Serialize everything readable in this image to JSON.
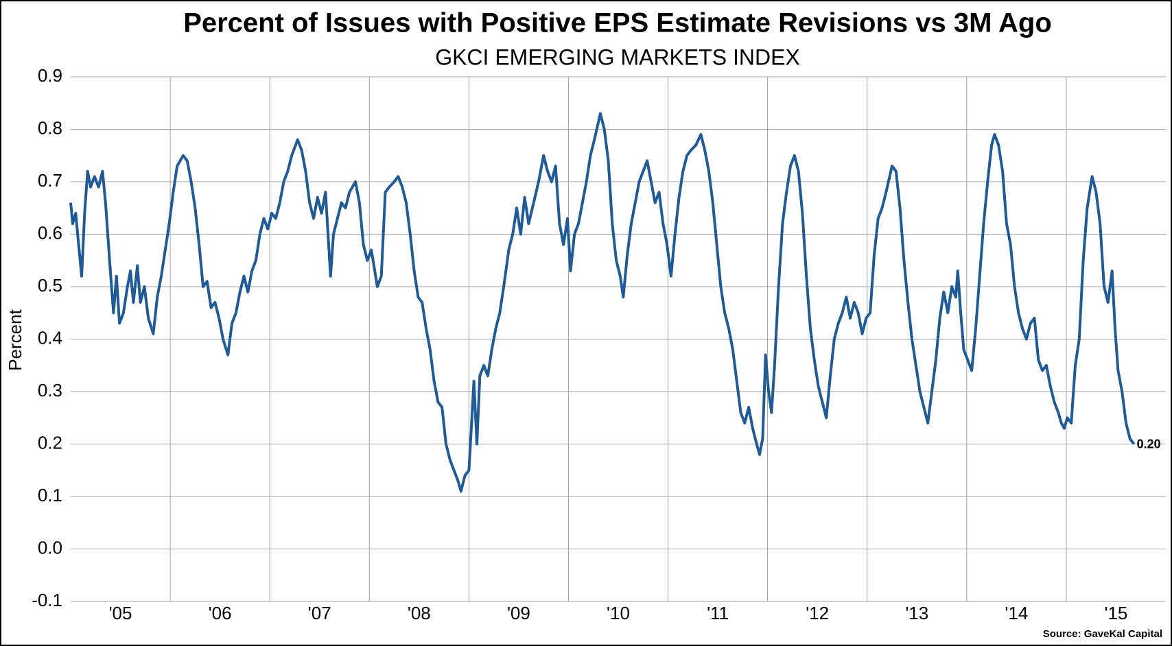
{
  "chart_data": {
    "type": "line",
    "title": "Percent of Issues with Positive EPS Estimate Revisions vs 3M Ago",
    "subtitle": "GKCI EMERGING MARKETS INDEX",
    "y_label": "Percent",
    "source": "Source: GaveKal Capital",
    "end_label": "0.20",
    "color": "#1f5b99",
    "grid": true,
    "xlim": [
      2005,
      2016
    ],
    "xticks": [
      {
        "value": 2005,
        "label": "'05"
      },
      {
        "value": 2006,
        "label": "'06"
      },
      {
        "value": 2007,
        "label": "'07"
      },
      {
        "value": 2008,
        "label": "'08"
      },
      {
        "value": 2009,
        "label": "'09"
      },
      {
        "value": 2010,
        "label": "'10"
      },
      {
        "value": 2011,
        "label": "'11"
      },
      {
        "value": 2012,
        "label": "'12"
      },
      {
        "value": 2013,
        "label": "'13"
      },
      {
        "value": 2014,
        "label": "'14"
      },
      {
        "value": 2015,
        "label": "'15"
      }
    ],
    "ylim": [
      -0.1,
      0.9
    ],
    "yticks": [
      -0.1,
      {
        "value": 0,
        "label": "0.0"
      },
      0.1,
      0.2,
      0.3,
      0.4,
      0.5,
      0.6,
      0.7,
      0.8,
      0.9
    ],
    "x": [
      2005,
      2005.02,
      2005.05,
      2005.08,
      2005.11,
      2005.14,
      2005.17,
      2005.2,
      2005.24,
      2005.28,
      2005.32,
      2005.35,
      2005.38,
      2005.41,
      2005.43,
      2005.46,
      2005.49,
      2005.53,
      2005.57,
      2005.6,
      2005.63,
      2005.67,
      2005.7,
      2005.74,
      2005.78,
      2005.83,
      2005.87,
      2005.91,
      2005.95,
      2005.99,
      2006.03,
      2006.07,
      2006.1,
      2006.13,
      2006.17,
      2006.21,
      2006.25,
      2006.29,
      2006.33,
      2006.37,
      2006.41,
      2006.45,
      2006.49,
      2006.53,
      2006.58,
      2006.62,
      2006.66,
      2006.7,
      2006.74,
      2006.78,
      2006.82,
      2006.86,
      2006.9,
      2006.94,
      2006.98,
      2007.02,
      2007.06,
      2007.1,
      2007.14,
      2007.18,
      2007.22,
      2007.28,
      2007.32,
      2007.36,
      2007.4,
      2007.44,
      2007.48,
      2007.52,
      2007.56,
      2007.61,
      2007.64,
      2007.68,
      2007.72,
      2007.76,
      2007.8,
      2007.86,
      2007.9,
      2007.94,
      2007.98,
      2008.02,
      2008.08,
      2008.12,
      2008.16,
      2008.2,
      2008.25,
      2008.29,
      2008.33,
      2008.37,
      2008.41,
      2008.45,
      2008.49,
      2008.53,
      2008.57,
      2008.61,
      2008.65,
      2008.69,
      2008.73,
      2008.77,
      2008.81,
      2008.85,
      2008.89,
      2008.92,
      2008.96,
      2009,
      2009.03,
      2009.05,
      2009.08,
      2009.11,
      2009.15,
      2009.19,
      2009.23,
      2009.27,
      2009.31,
      2009.35,
      2009.4,
      2009.44,
      2009.48,
      2009.52,
      2009.56,
      2009.6,
      2009.65,
      2009.7,
      2009.75,
      2009.79,
      2009.83,
      2009.87,
      2009.91,
      2009.95,
      2009.99,
      2010.02,
      2010.06,
      2010.1,
      2010.14,
      2010.18,
      2010.22,
      2010.26,
      2010.32,
      2010.36,
      2010.4,
      2010.44,
      2010.48,
      2010.52,
      2010.55,
      2010.59,
      2010.63,
      2010.67,
      2010.71,
      2010.75,
      2010.79,
      2010.83,
      2010.87,
      2010.91,
      2010.95,
      2010.99,
      2011.03,
      2011.07,
      2011.11,
      2011.15,
      2011.19,
      2011.23,
      2011.28,
      2011.33,
      2011.37,
      2011.41,
      2011.45,
      2011.49,
      2011.53,
      2011.57,
      2011.61,
      2011.65,
      2011.69,
      2011.73,
      2011.77,
      2011.81,
      2011.85,
      2011.89,
      2011.92,
      2011.95,
      2011.98,
      2012.01,
      2012.04,
      2012.07,
      2012.11,
      2012.15,
      2012.19,
      2012.23,
      2012.27,
      2012.31,
      2012.35,
      2012.39,
      2012.43,
      2012.47,
      2012.51,
      2012.55,
      2012.59,
      2012.63,
      2012.67,
      2012.71,
      2012.75,
      2012.79,
      2012.83,
      2012.87,
      2012.91,
      2012.95,
      2012.99,
      2013.03,
      2013.07,
      2013.11,
      2013.15,
      2013.19,
      2013.25,
      2013.29,
      2013.33,
      2013.37,
      2013.41,
      2013.45,
      2013.49,
      2013.53,
      2013.57,
      2013.61,
      2013.65,
      2013.69,
      2013.73,
      2013.77,
      2013.81,
      2013.85,
      2013.89,
      2013.91,
      2013.94,
      2013.97,
      2014.01,
      2014.05,
      2014.09,
      2014.13,
      2014.17,
      2014.21,
      2014.25,
      2014.28,
      2014.32,
      2014.36,
      2014.4,
      2014.44,
      2014.48,
      2014.52,
      2014.56,
      2014.6,
      2014.64,
      2014.68,
      2014.72,
      2014.76,
      2014.8,
      2014.84,
      2014.88,
      2014.92,
      2014.95,
      2014.98,
      2015.01,
      2015.05,
      2015.09,
      2015.13,
      2015.17,
      2015.21,
      2015.26,
      2015.3,
      2015.34,
      2015.38,
      2015.42,
      2015.46,
      2015.49,
      2015.52,
      2015.56,
      2015.6,
      2015.64,
      2015.68
    ],
    "values": [
      0.66,
      0.62,
      0.64,
      0.58,
      0.52,
      0.64,
      0.72,
      0.69,
      0.71,
      0.69,
      0.72,
      0.66,
      0.58,
      0.5,
      0.45,
      0.52,
      0.43,
      0.45,
      0.5,
      0.53,
      0.47,
      0.54,
      0.47,
      0.5,
      0.44,
      0.41,
      0.48,
      0.52,
      0.57,
      0.62,
      0.68,
      0.73,
      0.74,
      0.75,
      0.74,
      0.7,
      0.65,
      0.58,
      0.5,
      0.51,
      0.46,
      0.47,
      0.44,
      0.4,
      0.37,
      0.43,
      0.45,
      0.49,
      0.52,
      0.49,
      0.53,
      0.55,
      0.6,
      0.63,
      0.61,
      0.64,
      0.63,
      0.66,
      0.7,
      0.72,
      0.75,
      0.78,
      0.76,
      0.72,
      0.66,
      0.63,
      0.67,
      0.64,
      0.68,
      0.52,
      0.6,
      0.63,
      0.66,
      0.65,
      0.68,
      0.7,
      0.66,
      0.58,
      0.55,
      0.57,
      0.5,
      0.52,
      0.68,
      0.69,
      0.7,
      0.71,
      0.69,
      0.66,
      0.6,
      0.53,
      0.48,
      0.47,
      0.42,
      0.38,
      0.32,
      0.28,
      0.27,
      0.2,
      0.17,
      0.15,
      0.13,
      0.11,
      0.14,
      0.15,
      0.25,
      0.32,
      0.2,
      0.33,
      0.35,
      0.33,
      0.38,
      0.42,
      0.45,
      0.5,
      0.57,
      0.6,
      0.65,
      0.6,
      0.67,
      0.62,
      0.66,
      0.7,
      0.75,
      0.72,
      0.7,
      0.73,
      0.62,
      0.58,
      0.63,
      0.53,
      0.6,
      0.62,
      0.66,
      0.7,
      0.75,
      0.78,
      0.83,
      0.8,
      0.74,
      0.62,
      0.55,
      0.52,
      0.48,
      0.56,
      0.62,
      0.66,
      0.7,
      0.72,
      0.74,
      0.7,
      0.66,
      0.68,
      0.62,
      0.58,
      0.52,
      0.6,
      0.67,
      0.72,
      0.75,
      0.76,
      0.77,
      0.79,
      0.76,
      0.72,
      0.66,
      0.58,
      0.5,
      0.45,
      0.42,
      0.38,
      0.32,
      0.26,
      0.24,
      0.27,
      0.23,
      0.2,
      0.18,
      0.21,
      0.37,
      0.3,
      0.26,
      0.35,
      0.5,
      0.62,
      0.68,
      0.73,
      0.75,
      0.72,
      0.64,
      0.52,
      0.42,
      0.36,
      0.31,
      0.28,
      0.25,
      0.33,
      0.4,
      0.43,
      0.45,
      0.48,
      0.44,
      0.47,
      0.45,
      0.41,
      0.44,
      0.45,
      0.56,
      0.63,
      0.65,
      0.68,
      0.73,
      0.72,
      0.65,
      0.55,
      0.47,
      0.4,
      0.35,
      0.3,
      0.27,
      0.24,
      0.3,
      0.36,
      0.44,
      0.49,
      0.45,
      0.5,
      0.48,
      0.53,
      0.45,
      0.38,
      0.36,
      0.34,
      0.42,
      0.52,
      0.62,
      0.7,
      0.77,
      0.79,
      0.77,
      0.72,
      0.62,
      0.58,
      0.5,
      0.45,
      0.42,
      0.4,
      0.43,
      0.44,
      0.36,
      0.34,
      0.35,
      0.31,
      0.28,
      0.26,
      0.24,
      0.23,
      0.25,
      0.24,
      0.35,
      0.4,
      0.55,
      0.65,
      0.71,
      0.68,
      0.62,
      0.5,
      0.47,
      0.53,
      0.42,
      0.34,
      0.3,
      0.24,
      0.21,
      0.2
    ]
  }
}
